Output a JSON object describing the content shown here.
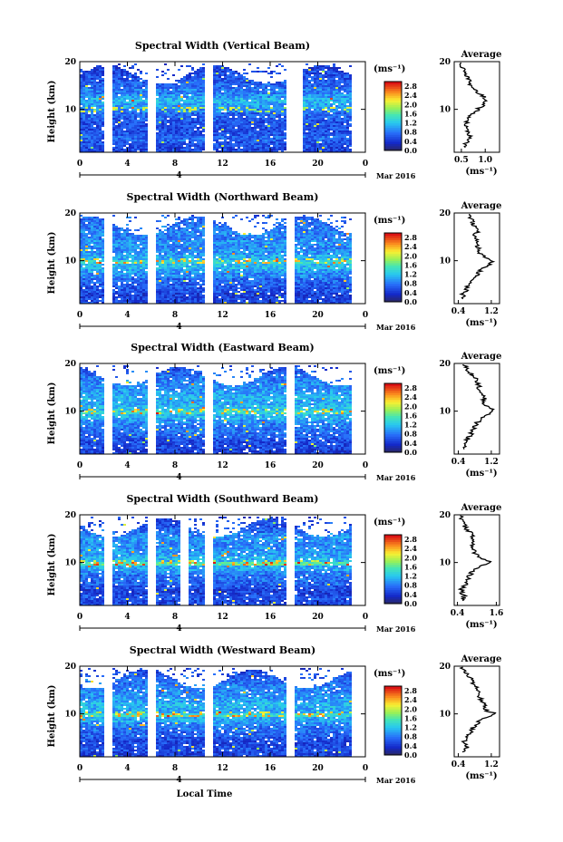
{
  "figure": {
    "xlabel": "Local Time",
    "unit_label": "(ms⁻¹)",
    "date_label": "Mar 2016",
    "day_label": "4",
    "ylabel": "Height (km)",
    "avg_title": "Average",
    "avg_xlabel": "(ms⁻¹)"
  },
  "chart_data": [
    {
      "type": "heatmap",
      "title": "Spectral Width (Vertical Beam)",
      "ylabel": "Height (km)",
      "x_ticks": [
        "0",
        "4",
        "8",
        "12",
        "16",
        "20",
        "0"
      ],
      "xlim": [
        0,
        24
      ],
      "y_ticks": [
        "20",
        "10"
      ],
      "ylim": [
        1,
        20
      ],
      "colorbar": {
        "ticks": [
          "2.8",
          "2.4",
          "2.0",
          "1.6",
          "1.2",
          "0.8",
          "0.4",
          "0.0"
        ],
        "range": [
          0.0,
          3.0
        ]
      },
      "gaps_hours": [
        2.2,
        6.0,
        10.8,
        17.5,
        18.2
      ],
      "average": {
        "title": "Average",
        "x_ticks": [
          "0.5",
          "1.0"
        ],
        "xlim": [
          0.35,
          1.3
        ],
        "height_km": [
          2,
          3,
          4,
          5,
          6,
          7,
          8,
          9,
          10,
          11,
          12,
          13,
          14,
          15,
          16,
          17,
          18,
          19,
          20
        ],
        "values": [
          0.55,
          0.6,
          0.7,
          0.62,
          0.58,
          0.6,
          0.65,
          0.7,
          0.85,
          0.95,
          1.05,
          0.9,
          0.8,
          0.7,
          0.65,
          0.6,
          0.55,
          0.5,
          0.48
        ]
      }
    },
    {
      "type": "heatmap",
      "title": "Spectral Width (Northward Beam)",
      "ylabel": "Height (km)",
      "x_ticks": [
        "0",
        "4",
        "8",
        "12",
        "16",
        "20",
        "0"
      ],
      "xlim": [
        0,
        24
      ],
      "y_ticks": [
        "20",
        "10"
      ],
      "ylim": [
        1,
        20
      ],
      "colorbar": {
        "ticks": [
          "2.8",
          "2.4",
          "2.0",
          "1.6",
          "1.2",
          "0.8",
          "0.4",
          "0.0"
        ],
        "range": [
          0.0,
          3.0
        ]
      },
      "gaps_hours": [
        2.2,
        6.0,
        10.8,
        17.5
      ],
      "average": {
        "title": "Average",
        "x_ticks": [
          "0.4",
          "1.2"
        ],
        "xlim": [
          0.3,
          1.4
        ],
        "height_km": [
          2,
          3,
          4,
          5,
          6,
          7,
          8,
          9,
          10,
          11,
          12,
          13,
          14,
          15,
          16,
          17,
          18,
          19,
          20
        ],
        "values": [
          0.55,
          0.5,
          0.6,
          0.65,
          0.7,
          0.85,
          0.95,
          1.1,
          1.25,
          1.0,
          0.9,
          0.85,
          0.9,
          0.8,
          0.85,
          0.8,
          0.75,
          0.7,
          0.6
        ]
      }
    },
    {
      "type": "heatmap",
      "title": "Spectral Width (Eastward Beam)",
      "ylabel": "Height (km)",
      "x_ticks": [
        "0",
        "4",
        "8",
        "12",
        "16",
        "20",
        "0"
      ],
      "xlim": [
        0,
        24
      ],
      "y_ticks": [
        "20",
        "10"
      ],
      "ylim": [
        1,
        20
      ],
      "colorbar": {
        "ticks": [
          "2.8",
          "2.4",
          "2.0",
          "1.6",
          "1.2",
          "0.8",
          "0.4",
          "0.0"
        ],
        "range": [
          0.0,
          3.0
        ]
      },
      "gaps_hours": [
        2.2,
        6.0,
        10.8,
        17.5
      ],
      "average": {
        "title": "Average",
        "x_ticks": [
          "0.4",
          "1.2"
        ],
        "xlim": [
          0.3,
          1.4
        ],
        "height_km": [
          2,
          3,
          4,
          5,
          6,
          7,
          8,
          9,
          10,
          11,
          12,
          13,
          14,
          15,
          16,
          17,
          18,
          19,
          20
        ],
        "values": [
          0.5,
          0.55,
          0.6,
          0.7,
          0.75,
          0.8,
          0.9,
          1.05,
          1.25,
          1.1,
          1.0,
          1.05,
          0.95,
          0.9,
          0.85,
          0.8,
          0.7,
          0.6,
          0.5
        ]
      }
    },
    {
      "type": "heatmap",
      "title": "Spectral Width (Southward Beam)",
      "ylabel": "Height (km)",
      "x_ticks": [
        "0",
        "4",
        "8",
        "12",
        "16",
        "20",
        "0"
      ],
      "xlim": [
        0,
        24
      ],
      "y_ticks": [
        "20",
        "10"
      ],
      "ylim": [
        1,
        20
      ],
      "colorbar": {
        "ticks": [
          "2.8",
          "2.4",
          "2.0",
          "1.6",
          "1.2",
          "0.8",
          "0.4",
          "0.0"
        ],
        "range": [
          0.0,
          3.0
        ]
      },
      "gaps_hours": [
        2.2,
        6.0,
        8.7,
        10.8,
        17.5
      ],
      "average": {
        "title": "Average",
        "x_ticks": [
          "0.4",
          "1.6"
        ],
        "xlim": [
          0.3,
          1.7
        ],
        "height_km": [
          2,
          3,
          4,
          5,
          6,
          7,
          8,
          9,
          10,
          11,
          12,
          13,
          14,
          15,
          16,
          17,
          18,
          19,
          20
        ],
        "values": [
          0.55,
          0.6,
          0.5,
          0.6,
          0.7,
          0.75,
          0.85,
          1.0,
          1.45,
          1.05,
          0.95,
          0.9,
          0.85,
          0.9,
          0.85,
          0.7,
          0.6,
          0.55,
          0.5
        ]
      }
    },
    {
      "type": "heatmap",
      "title": "Spectral Width (Westward Beam)",
      "ylabel": "Height (km)",
      "x_ticks": [
        "0",
        "4",
        "8",
        "12",
        "16",
        "20",
        "0"
      ],
      "xlim": [
        0,
        24
      ],
      "y_ticks": [
        "20",
        "10"
      ],
      "ylim": [
        1,
        20
      ],
      "colorbar": {
        "ticks": [
          "2.8",
          "2.4",
          "2.0",
          "1.6",
          "1.2",
          "0.8",
          "0.4",
          "0.0"
        ],
        "range": [
          0.0,
          3.0
        ]
      },
      "gaps_hours": [
        2.2,
        6.0,
        10.8,
        17.5
      ],
      "average": {
        "title": "Average",
        "x_ticks": [
          "0.4",
          "1.2"
        ],
        "xlim": [
          0.3,
          1.4
        ],
        "height_km": [
          2,
          3,
          4,
          5,
          6,
          7,
          8,
          9,
          10,
          11,
          12,
          13,
          14,
          15,
          16,
          17,
          18,
          19,
          20
        ],
        "values": [
          0.5,
          0.6,
          0.55,
          0.6,
          0.7,
          0.75,
          0.85,
          1.0,
          1.3,
          1.0,
          1.05,
          0.95,
          0.9,
          0.85,
          0.8,
          0.75,
          0.65,
          0.55,
          0.45
        ]
      }
    }
  ]
}
